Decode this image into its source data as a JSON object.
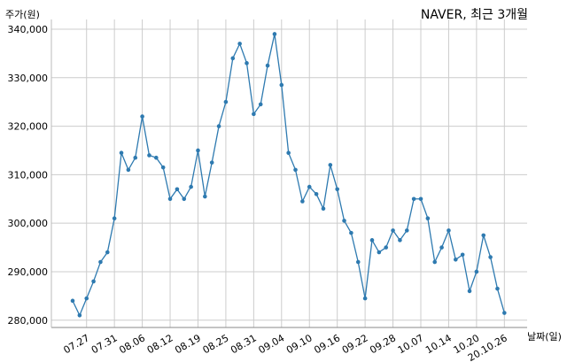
{
  "chart_data": {
    "type": "line",
    "title": "NAVER, 최근 3개월",
    "ylabel": "주가(원)",
    "xlabel": "날짜(일)",
    "ylim": [
      278500,
      342000
    ],
    "yticks": [
      280000,
      290000,
      300000,
      310000,
      320000,
      330000,
      340000
    ],
    "ytick_labels": [
      "280,000",
      "290,000",
      "300,000",
      "310,000",
      "320,000",
      "330,000",
      "340,000"
    ],
    "xtick_labels": [
      "07.27",
      "07.31",
      "08.06",
      "08.12",
      "08.19",
      "08.25",
      "08.31",
      "09.04",
      "09.10",
      "09.16",
      "09.22",
      "09.28",
      "10.07",
      "10.14",
      "10.20",
      "20.10.26"
    ],
    "xtick_positions": [
      2,
      6,
      10,
      14,
      18,
      22,
      26,
      30,
      34,
      38,
      42,
      46,
      50,
      54,
      58,
      62
    ],
    "grid": true,
    "color": "#2e7ab0",
    "series": [
      {
        "values": [
          284000,
          281000,
          284500,
          288000,
          292000,
          294000,
          301000,
          314500,
          311000,
          313500,
          322000,
          314000,
          313500,
          311500,
          305000,
          307000,
          305000,
          307500,
          315000,
          305500,
          312500,
          320000,
          325000,
          334000,
          337000,
          333000,
          322500,
          324500,
          332500,
          339000,
          328500,
          314500,
          311000,
          304500,
          307500,
          306000,
          303000,
          312000,
          307000,
          300500,
          298000,
          292000,
          284500,
          296500,
          294000,
          295000,
          298500,
          296500,
          298500,
          305000,
          305000,
          301000,
          292000,
          295000,
          298500,
          292500,
          293500,
          286000,
          290000,
          297500,
          293000,
          286500,
          281500
        ]
      }
    ]
  }
}
